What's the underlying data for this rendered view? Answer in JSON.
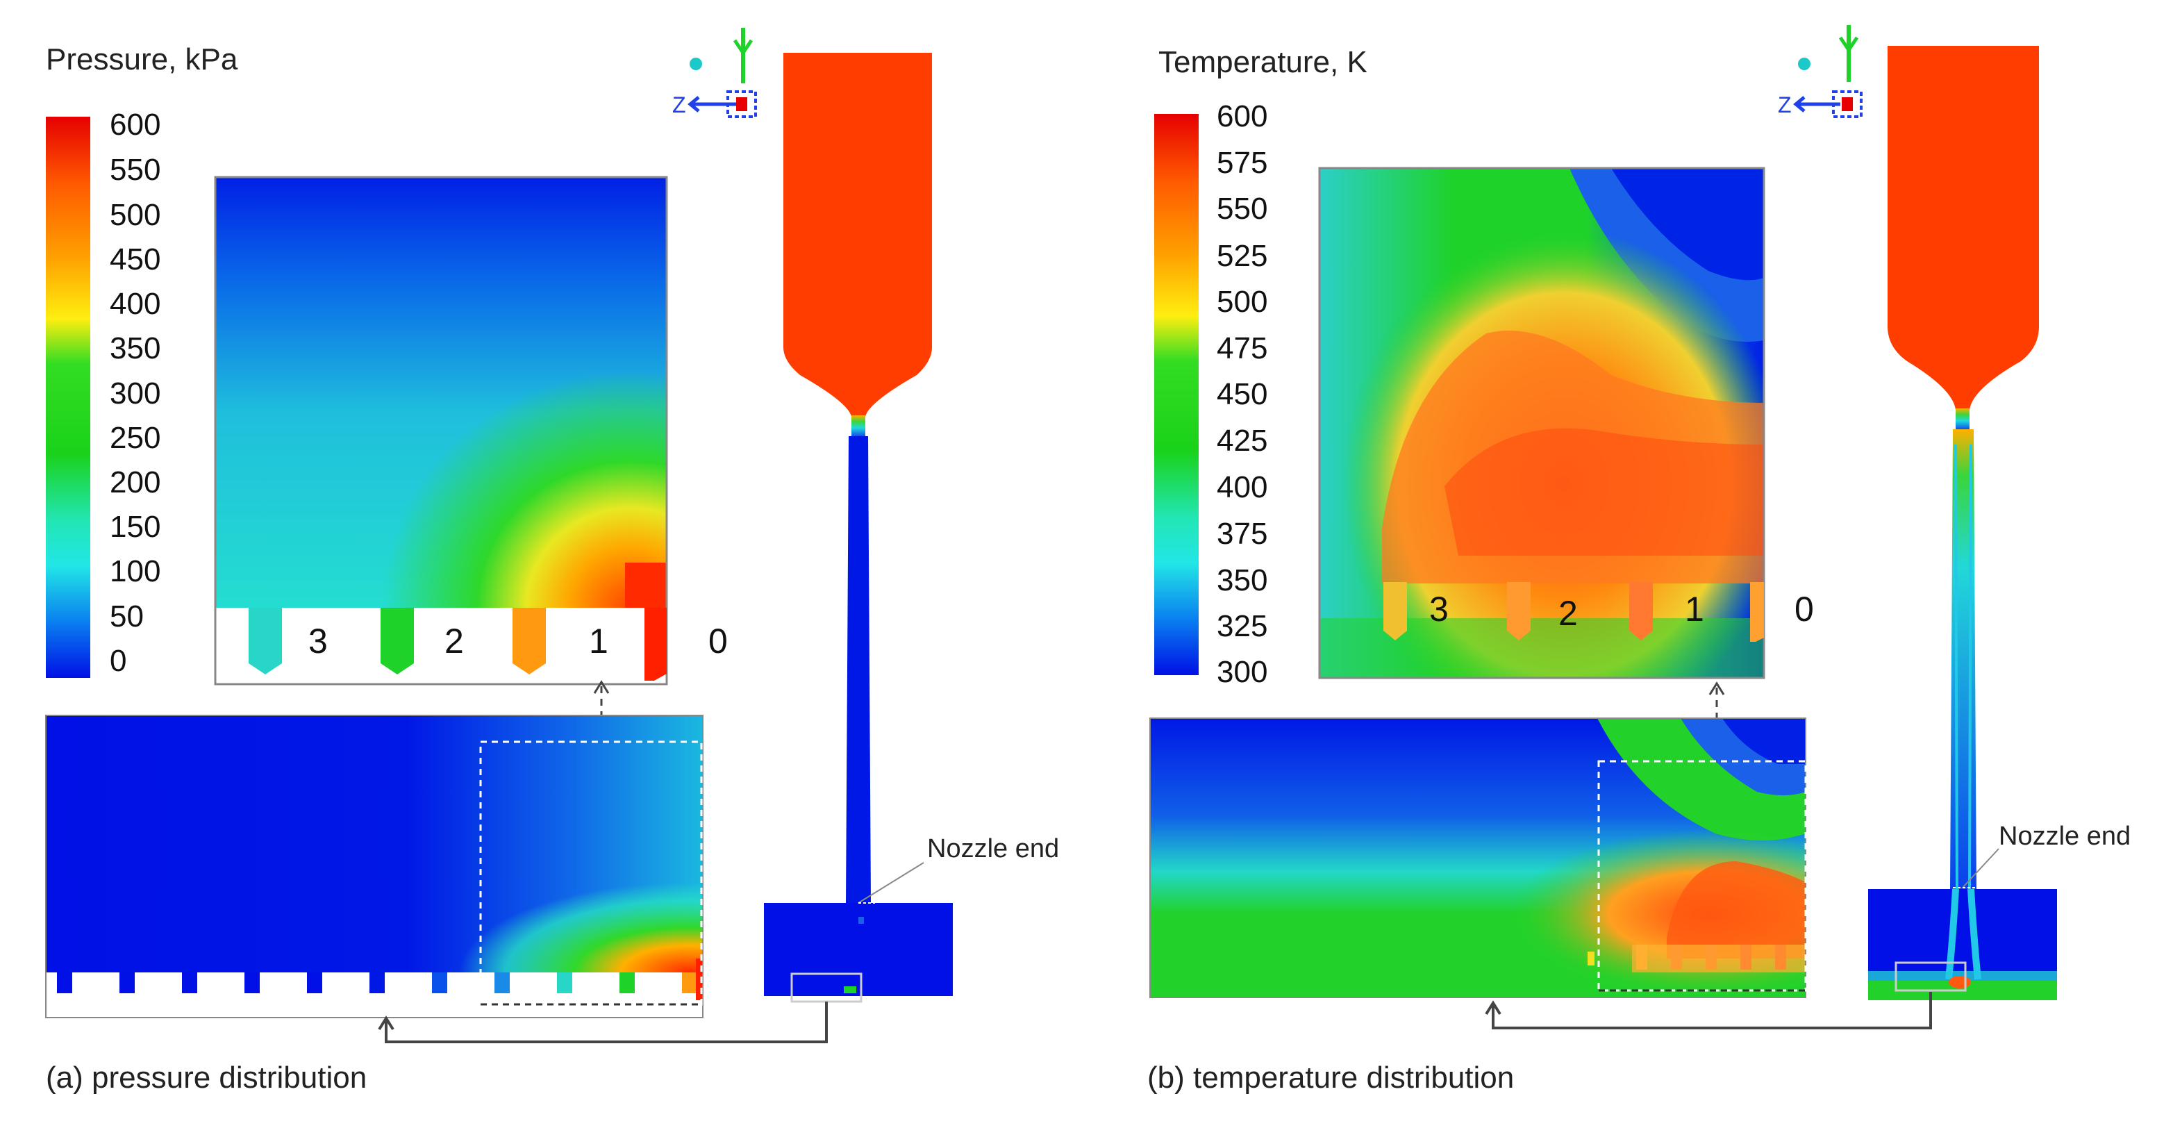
{
  "panel_a": {
    "legend_title": "Pressure, kPa",
    "ticks": [
      "600",
      "550",
      "500",
      "450",
      "400",
      "350",
      "300",
      "250",
      "200",
      "150",
      "100",
      "50",
      "0"
    ],
    "zoom_labels": [
      "3",
      "2",
      "1",
      "0"
    ],
    "annotation": "Nozzle end",
    "caption": "(a) pressure distribution"
  },
  "panel_b": {
    "legend_title": "Temperature, K",
    "ticks": [
      "600",
      "575",
      "550",
      "525",
      "500",
      "475",
      "450",
      "425",
      "400",
      "375",
      "350",
      "325",
      "300"
    ],
    "zoom_labels": [
      "3",
      "2",
      "1",
      "0"
    ],
    "annotation": "Nozzle end",
    "caption": "(b) temperature distribution"
  },
  "axis_triad": {
    "axis_label": "Z"
  },
  "colors": {
    "red": "#ff3a00",
    "blue": "#0015e6",
    "green": "#18d018",
    "cyan": "#27e0d2",
    "yellow": "#f4d020",
    "orange": "#ff8a00"
  }
}
